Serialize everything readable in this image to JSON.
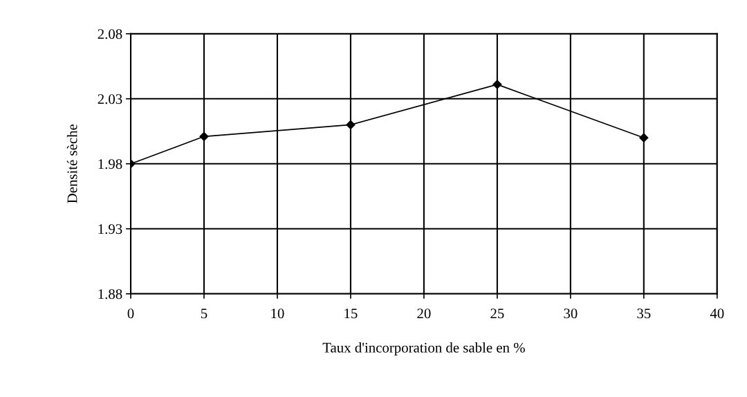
{
  "chart_data": {
    "type": "line",
    "xlabel": "Taux d'incorporation de sable en %",
    "ylabel": "Densité sèche",
    "x": [
      0,
      5,
      15,
      25,
      35
    ],
    "series": [
      {
        "color": "#000000",
        "values": [
          1.98,
          2.001,
          2.01,
          2.041,
          2.0
        ]
      }
    ],
    "xlim": [
      0,
      40
    ],
    "xticks": [
      0,
      5,
      10,
      15,
      20,
      25,
      30,
      35,
      40
    ],
    "ylim": [
      1.88,
      2.08
    ],
    "yticks": [
      {
        "value": 1.88,
        "label": "1.88"
      },
      {
        "value": 1.93,
        "label": "1.93"
      },
      {
        "value": 1.98,
        "label": "1.98"
      },
      {
        "value": 2.03,
        "label": "2.03"
      },
      {
        "value": 2.08,
        "label": "2.08"
      }
    ],
    "grid": true,
    "marker": "diamond",
    "line_style": "solid"
  }
}
